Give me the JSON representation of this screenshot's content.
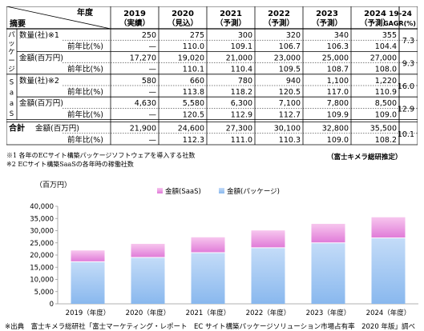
{
  "table": {
    "corner_top": "年度",
    "corner_bottom": "摘要",
    "years": [
      {
        "year": "2019",
        "note": "（実績）"
      },
      {
        "year": "2020",
        "note": "（見込）"
      },
      {
        "year": "2021",
        "note": "（予測）"
      },
      {
        "year": "2022",
        "note": "（予測）"
      },
      {
        "year": "2023",
        "note": "（予測）"
      },
      {
        "year": "2024",
        "note": "（予測）"
      }
    ],
    "gagr_header": [
      "19-24",
      "GAGR(%)"
    ],
    "groups": [
      {
        "label": "パッケージ",
        "label_chars": [
          "パ",
          "ッ",
          "ケ",
          "ー",
          "ジ"
        ]
      },
      {
        "label": "SaaS",
        "label_chars": [
          "S",
          "a",
          "a",
          "S"
        ]
      },
      {
        "label": "合計",
        "label_chars": []
      }
    ],
    "rows": [
      {
        "label": "数量(社)※1",
        "values": [
          "250",
          "275",
          "300",
          "320",
          "340",
          "355"
        ],
        "gagr": "7.3"
      },
      {
        "label": "前年比(%)",
        "values": [
          "—",
          "110.0",
          "109.1",
          "106.7",
          "106.3",
          "104.4"
        ],
        "gagr": ""
      },
      {
        "label": "金額(百万円)",
        "values": [
          "17,270",
          "19,020",
          "21,000",
          "23,000",
          "25,000",
          "27,000"
        ],
        "gagr": "9.3"
      },
      {
        "label": "前年比(%)",
        "values": [
          "—",
          "110.1",
          "110.4",
          "109.5",
          "108.7",
          "108.0"
        ],
        "gagr": ""
      },
      {
        "label": "数量(社)※2",
        "values": [
          "580",
          "660",
          "780",
          "940",
          "1,100",
          "1,220"
        ],
        "gagr": "16.0"
      },
      {
        "label": "前年比(%)",
        "values": [
          "—",
          "113.8",
          "118.2",
          "120.5",
          "117.0",
          "110.9"
        ],
        "gagr": ""
      },
      {
        "label": "金額(百万円)",
        "values": [
          "4,630",
          "5,580",
          "6,300",
          "7,100",
          "7,800",
          "8,500"
        ],
        "gagr": "12.9"
      },
      {
        "label": "前年比(%)",
        "values": [
          "—",
          "120.5",
          "112.9",
          "112.7",
          "109.9",
          "109.0"
        ],
        "gagr": ""
      },
      {
        "label": "金額(百万円)",
        "values": [
          "21,900",
          "24,600",
          "27,300",
          "30,100",
          "32,800",
          "35,500"
        ],
        "gagr": "10.1"
      },
      {
        "label": "前年比(%)",
        "values": [
          "—",
          "112.3",
          "111.0",
          "110.3",
          "109.0",
          "108.2"
        ],
        "gagr": ""
      }
    ]
  },
  "notes": {
    "note1": "※1 各年のECサイト構築パッケージソフトウェアを導入する社数",
    "note2": "※2 ECサイト構築SaaSの各年時の稼働社数",
    "publisher": "（富士キメラ総研推定）",
    "source": "※出典　富士キメラ総研社「富士マーケティング・レポート　EC サイト構築パッケージソリューション市場占有率　2020 年版」調べ"
  },
  "colors": {
    "saas_top": "#f7c6ee",
    "saas_bottom": "#e07ad8",
    "pkg_top": "#c4dcf8",
    "pkg_bottom": "#89b8ee"
  },
  "chart_data": {
    "type": "bar",
    "stacked": true,
    "unit_label": "（百万円）",
    "categories": [
      "2019（年度）",
      "2020（年度）",
      "2021（年度）",
      "2022（年度）",
      "2023（年度）",
      "2024（年度）"
    ],
    "series": [
      {
        "name": "金額(パッケージ)",
        "values": [
          17270,
          19020,
          21000,
          23000,
          25000,
          27000
        ]
      },
      {
        "name": "金額(SaaS)",
        "values": [
          4630,
          5580,
          6300,
          7100,
          7800,
          8500
        ]
      }
    ],
    "ylim": [
      0,
      40000
    ],
    "yticks": [
      "0",
      "5,000",
      "10,000",
      "15,000",
      "20,000",
      "25,000",
      "30,000",
      "35,000",
      "40,000"
    ],
    "legend_position": "top",
    "grid": false
  }
}
